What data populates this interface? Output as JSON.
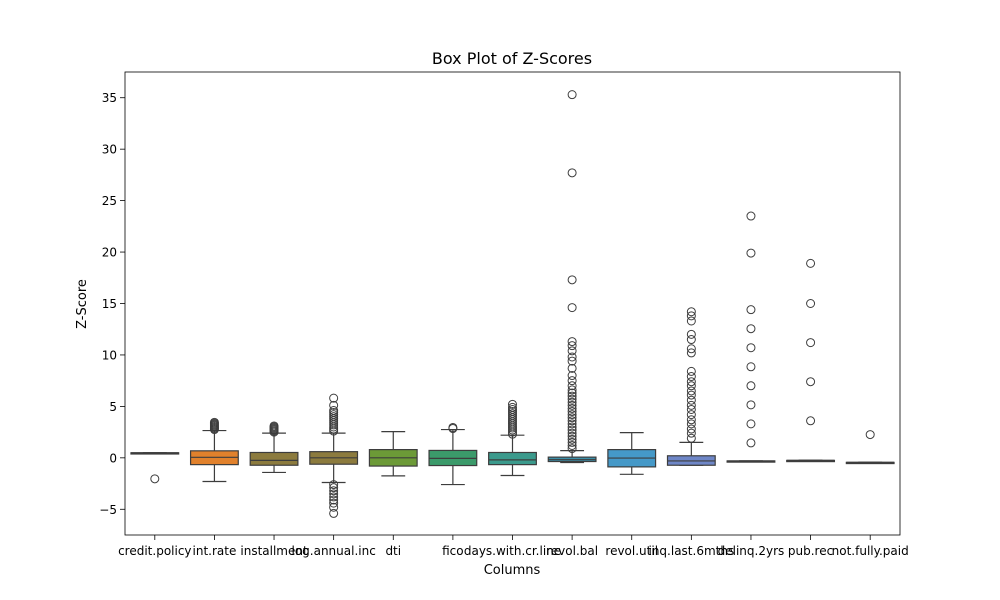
{
  "chart_data": {
    "type": "box",
    "title": "Box Plot of Z-Scores",
    "xlabel": "Columns",
    "ylabel": "Z-Score",
    "ylim": [
      -7.5,
      37.5
    ],
    "yticks": [
      -5,
      0,
      5,
      10,
      15,
      20,
      25,
      30,
      35
    ],
    "grid": false,
    "series": [
      {
        "label": "credit.policy",
        "color": "#3274a1",
        "q1": 0.49,
        "median": 0.49,
        "q3": 0.49,
        "whisker_low": 0.49,
        "whisker_high": 0.49,
        "outliers": [
          -2.04
        ]
      },
      {
        "label": "int.rate",
        "color": "#e1812c",
        "q1": -0.66,
        "median": 0.05,
        "q3": 0.68,
        "whisker_low": -2.3,
        "whisker_high": 2.65,
        "outliers": [
          2.75,
          2.85,
          2.95,
          3.05,
          3.15,
          3.25,
          3.35,
          3.45
        ]
      },
      {
        "label": "installment",
        "color": "#8c7b3e",
        "q1": -0.72,
        "median": -0.25,
        "q3": 0.52,
        "whisker_low": -1.42,
        "whisker_high": 2.4,
        "outliers": [
          2.5,
          2.6,
          2.7,
          2.8,
          2.9,
          3.0,
          3.1
        ]
      },
      {
        "label": "log.annual.inc",
        "color": "#8c7b3e",
        "q1": -0.62,
        "median": 0.0,
        "q3": 0.6,
        "whisker_low": -2.4,
        "whisker_high": 2.4,
        "outliers": [
          -5.4,
          -4.8,
          -4.4,
          -4.1,
          -3.8,
          -3.5,
          -3.2,
          -2.9,
          -2.6,
          2.6,
          2.8,
          3.0,
          3.2,
          3.4,
          3.6,
          3.8,
          4.0,
          4.2,
          4.4,
          4.6,
          5.1,
          5.8
        ]
      },
      {
        "label": "dti",
        "color": "#6c9a37",
        "q1": -0.8,
        "median": 0.0,
        "q3": 0.8,
        "whisker_low": -1.75,
        "whisker_high": 2.55,
        "outliers": []
      },
      {
        "label": "fico",
        "color": "#3b9a6a",
        "q1": -0.75,
        "median": -0.05,
        "q3": 0.72,
        "whisker_low": -2.6,
        "whisker_high": 2.75,
        "outliers": [
          2.85,
          2.95
        ]
      },
      {
        "label": "days.with.cr.line",
        "color": "#3b9a8c",
        "q1": -0.66,
        "median": -0.2,
        "q3": 0.52,
        "whisker_low": -1.72,
        "whisker_high": 2.2,
        "outliers": [
          2.3,
          2.5,
          2.7,
          2.9,
          3.1,
          3.3,
          3.5,
          3.7,
          3.9,
          4.1,
          4.3,
          4.5,
          4.7,
          4.9,
          5.2
        ]
      },
      {
        "label": "revol.bal",
        "color": "#3c8fa8",
        "q1": -0.36,
        "median": -0.18,
        "q3": 0.07,
        "whisker_low": -0.45,
        "whisker_high": 0.7,
        "outliers": [
          0.9,
          1.2,
          1.5,
          1.8,
          2.1,
          2.4,
          2.7,
          3.0,
          3.3,
          3.6,
          3.9,
          4.2,
          4.5,
          4.8,
          5.1,
          5.4,
          5.7,
          6.0,
          6.3,
          6.6,
          7.0,
          7.5,
          8.0,
          8.7,
          9.4,
          9.8,
          10.4,
          10.9,
          11.3,
          14.6,
          17.3,
          27.7,
          35.3
        ]
      },
      {
        "label": "revol.util",
        "color": "#4599c8",
        "q1": -0.88,
        "median": -0.02,
        "q3": 0.8,
        "whisker_low": -1.6,
        "whisker_high": 2.45,
        "outliers": []
      },
      {
        "label": "inq.last.6mths",
        "color": "#6e86c7",
        "q1": -0.72,
        "median": -0.3,
        "q3": 0.2,
        "whisker_low": -0.72,
        "whisker_high": 1.5,
        "outliers": [
          1.9,
          2.4,
          2.8,
          3.3,
          3.7,
          4.2,
          4.7,
          5.1,
          5.6,
          6.1,
          6.5,
          7.0,
          7.4,
          7.9,
          8.4,
          10.2,
          10.6,
          11.5,
          12.0,
          13.3,
          13.8,
          14.2
        ]
      },
      {
        "label": "delinq.2yrs",
        "color": "#8d7ec0",
        "q1": -0.3,
        "median": -0.3,
        "q3": -0.3,
        "whisker_low": -0.3,
        "whisker_high": -0.3,
        "outliers": [
          1.45,
          3.3,
          5.15,
          7.0,
          8.85,
          10.7,
          12.55,
          14.4,
          19.9,
          23.5
        ]
      },
      {
        "label": "pub.rec",
        "color": "#a887c2",
        "q1": -0.25,
        "median": -0.25,
        "q3": -0.25,
        "whisker_low": -0.25,
        "whisker_high": -0.25,
        "outliers": [
          3.6,
          7.4,
          11.2,
          15.0,
          18.9
        ]
      },
      {
        "label": "not.fully.paid",
        "color": "#c38fbb",
        "q1": -0.44,
        "median": -0.44,
        "q3": -0.44,
        "whisker_low": -0.44,
        "whisker_high": -0.44,
        "outliers": [
          2.26
        ]
      }
    ]
  }
}
